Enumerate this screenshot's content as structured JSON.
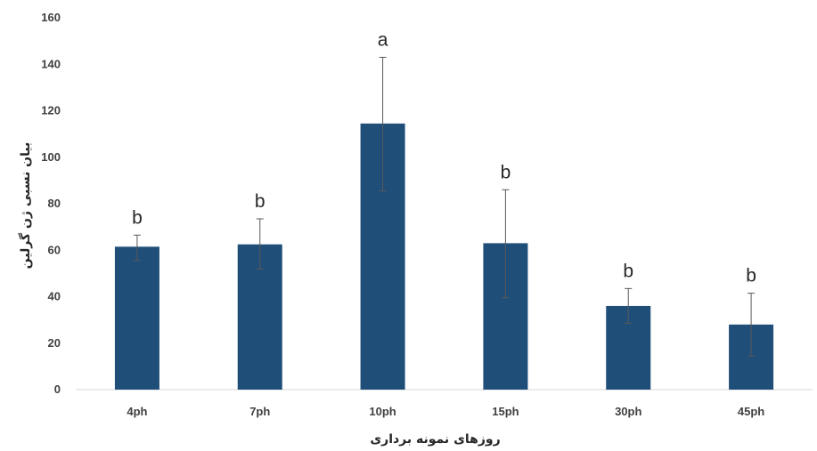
{
  "chart_data": {
    "type": "bar",
    "categories": [
      "4ph",
      "7ph",
      "10ph",
      "15ph",
      "30ph",
      "45ph"
    ],
    "values": [
      61.5,
      62.5,
      114.5,
      63,
      36,
      28
    ],
    "error_low": [
      55.5,
      52,
      85.5,
      39.5,
      28.5,
      14.5
    ],
    "error_high": [
      66.5,
      73.5,
      143,
      86,
      43.5,
      41.5
    ],
    "significance_labels": [
      "b",
      "b",
      "a",
      "b",
      "b",
      "b"
    ],
    "xlabel": "روزهای نمونه برداری",
    "ylabel": "بیان نسبی ژن گرلین",
    "ylim": [
      0,
      160
    ],
    "yticks": [
      "0",
      "20",
      "40",
      "60",
      "80",
      "100",
      "120",
      "140",
      "160"
    ],
    "bar_color": "#1f4e79",
    "grid": false,
    "legend": "none"
  }
}
